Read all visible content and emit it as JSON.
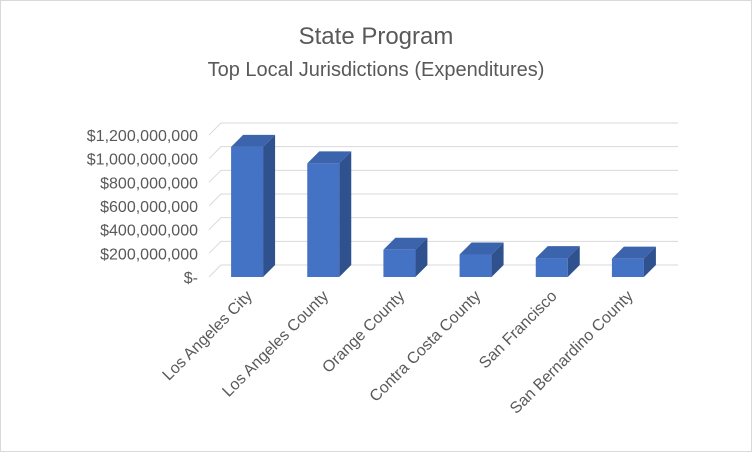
{
  "chart_data": {
    "type": "bar",
    "title": "State Program",
    "subtitle": "Top Local Jurisdictions (Expenditures)",
    "categories": [
      "Los Angeles City",
      "Los Angeles County",
      "Orange County",
      "Contra Costa County",
      "San Francisco",
      "San Bernardino County"
    ],
    "values": [
      1100000000,
      960000000,
      230000000,
      190000000,
      160000000,
      155000000
    ],
    "ylim": [
      0,
      1200000000
    ],
    "yticks": [
      0,
      200000000,
      400000000,
      600000000,
      800000000,
      1000000000,
      1200000000
    ],
    "ytick_labels": [
      "$-",
      "$200,000,000",
      "$400,000,000",
      "$600,000,000",
      "$800,000,000",
      "$1,000,000,000",
      "$1,200,000,000"
    ],
    "grid": true,
    "bar_color": "#4472c4"
  }
}
